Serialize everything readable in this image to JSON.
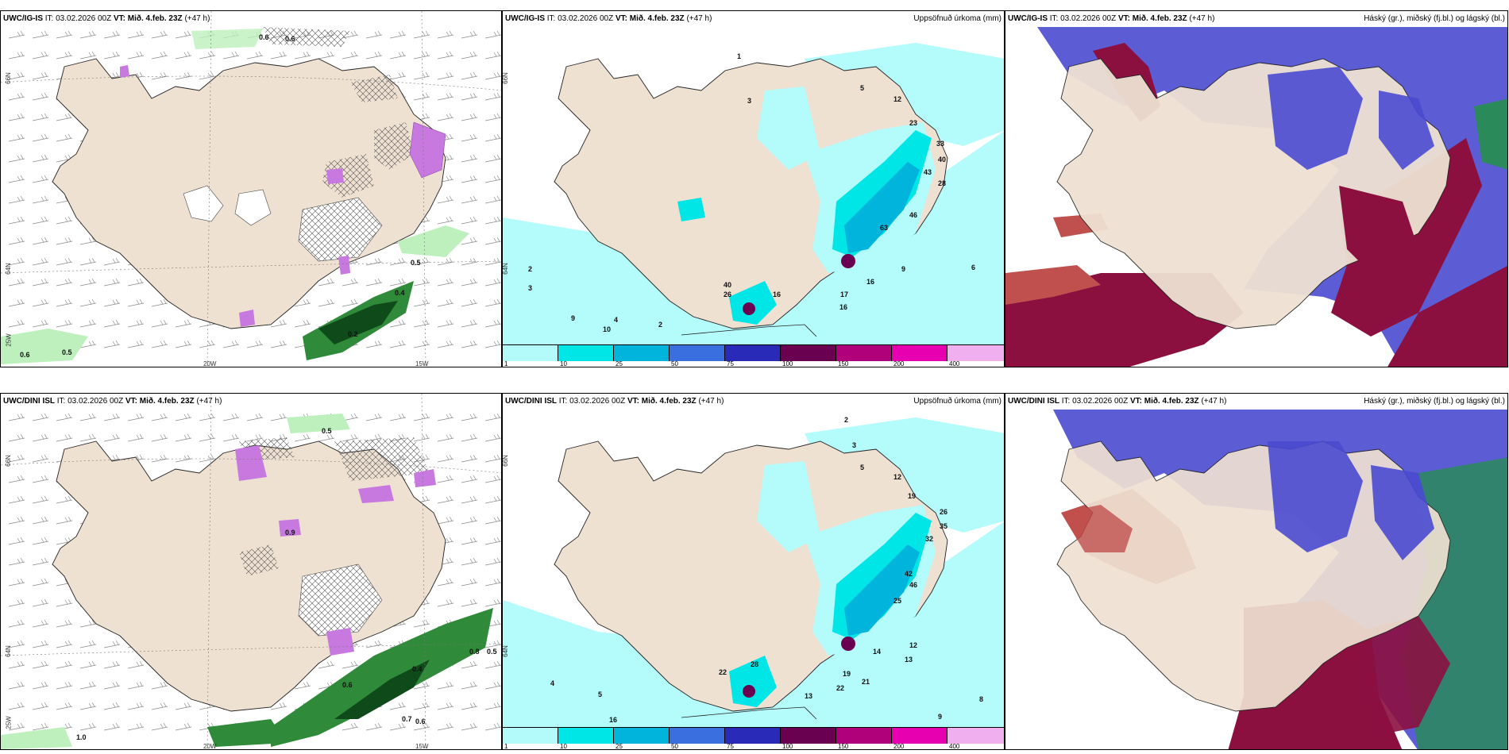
{
  "panels": {
    "tl": {
      "model": "UWC/IG-IS",
      "it_label": "IT:",
      "it_value": "03.02.2026 00Z",
      "vt_label": "VT:",
      "vt_value": "Mið. 4.feb. 23Z",
      "lead": "(+47 h)",
      "title": ""
    },
    "tm": {
      "model": "UWC/IG-IS",
      "it_label": "IT:",
      "it_value": "03.02.2026 00Z",
      "vt_label": "VT:",
      "vt_value": "Mið. 4.feb. 23Z",
      "lead": "(+47 h)",
      "title": "Uppsöfnuð úrkoma (mm)"
    },
    "tr": {
      "model": "UWC/IG-IS",
      "it_label": "IT:",
      "it_value": "03.02.2026 00Z",
      "vt_label": "VT:",
      "vt_value": "Mið. 4.feb. 23Z",
      "lead": "(+47 h)",
      "title": "Háský (gr.), miðský (fj.bl.) og lágský (bl.)"
    },
    "bl": {
      "model": "UWC/DINI ISL",
      "it_label": "IT:",
      "it_value": "03.02.2026 00Z",
      "vt_label": "VT:",
      "vt_value": "Mið. 4.feb. 23Z",
      "lead": "(+47 h)",
      "title": ""
    },
    "bm": {
      "model": "UWC/DINI ISL",
      "it_label": "IT:",
      "it_value": "03.02.2026 00Z",
      "vt_label": "VT:",
      "vt_value": "Mið. 4.feb. 23Z",
      "lead": "(+47 h)",
      "title": "Uppsöfnuð úrkoma (mm)"
    },
    "br": {
      "model": "UWC/DINI ISL",
      "it_label": "IT:",
      "it_value": "03.02.2026 00Z",
      "vt_label": "VT:",
      "vt_value": "Mið. 4.feb. 23Z",
      "lead": "(+47 h)",
      "title": "Háský (gr.), miðský (fj.bl.) og lágský (bl.)"
    }
  },
  "axes": {
    "lat66": "66N",
    "lat64": "64N",
    "lon25": "25W",
    "lon20": "20W",
    "lon15": "15W"
  },
  "legend": {
    "ticks": [
      "1",
      "10",
      "25",
      "50",
      "75",
      "100",
      "150",
      "200",
      "400"
    ],
    "colors": [
      "#b3fbfb",
      "#00e5e5",
      "#00b4dc",
      "#3a6fe0",
      "#2a2ab8",
      "#6a0050",
      "#b0007a",
      "#e600b0",
      "#f0b0f0"
    ]
  },
  "precip_labels_top": [
    "1",
    "3",
    "5",
    "12",
    "23",
    "33",
    "40",
    "43",
    "28",
    "46",
    "63",
    "16",
    "9",
    "17",
    "16",
    "40",
    "16",
    "26",
    "9",
    "10",
    "2",
    "3",
    "2",
    "4",
    "6"
  ],
  "precip_labels_bottom": [
    "2",
    "3",
    "5",
    "12",
    "19",
    "26",
    "35",
    "32",
    "42",
    "46",
    "25",
    "14",
    "12",
    "13",
    "19",
    "22",
    "21",
    "28",
    "22",
    "13",
    "16",
    "4",
    "5",
    "8",
    "9"
  ],
  "snow_labels_top": [
    "0.6",
    "0.6",
    "0.5",
    "0.6",
    "0.5",
    "0.4",
    "0.2"
  ],
  "snow_labels_bottom": [
    "0.5",
    "0.9",
    "0.8",
    "0.5",
    "0.4",
    "0.6",
    "1.0",
    "0.7",
    "0.6"
  ],
  "colors": {
    "land": "#efe1d2",
    "coast": "#222222",
    "sea_precip": "#b4fbfb",
    "high_cloud": "#8b1040",
    "mid_cloud": "#4a4ad0",
    "low_cloud": "#2a8a5a",
    "snow_green": "#2f8a3a"
  }
}
